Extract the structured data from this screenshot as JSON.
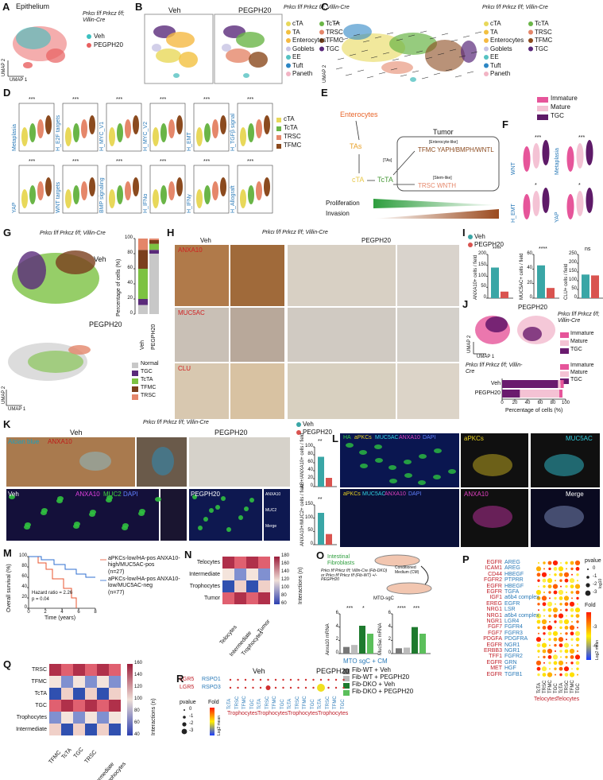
{
  "a": {
    "letter": "A",
    "title": "Epithelium",
    "genotype": "Prkcι f/f Prkcz f/f; Villin-Cre",
    "legend": [
      {
        "name": "Veh",
        "color": "#3cc0c0"
      },
      {
        "name": "PEGPH20",
        "color": "#e86060"
      }
    ],
    "xlabel": "UMAP 1",
    "ylabel": "UMAP 2"
  },
  "b": {
    "letter": "B",
    "groups": [
      "Veh",
      "PEGPH20"
    ],
    "genotype": "Prkcι f/f Prkcz f/f; Villin-Cre",
    "legend": [
      "cTA",
      "TA",
      "Enterocytes",
      "Goblets",
      "EE",
      "Tuft",
      "Paneth",
      "TcTA",
      "TRSC",
      "TFMC",
      "TGC"
    ],
    "colors": [
      "#e8d85a",
      "#f2c040",
      "#f5b942",
      "#c7c3e3",
      "#55c2c2",
      "#2d86c4",
      "#f2b4c4",
      "#6ab547",
      "#e5876a",
      "#8b4a1e",
      "#5a2a7a"
    ]
  },
  "c": {
    "letter": "C",
    "genotype": "Prkcι f/f Prkcz f/f; Villin-Cre",
    "ylabel": "UMAP 2"
  },
  "d": {
    "letter": "D",
    "signatures": [
      "Metaplasia",
      "H_E2F targets",
      "H_MYC_V1",
      "H_MYC_V2",
      "H_EMT",
      "H_TGFβ signal",
      "YAP",
      "WNT targets",
      "BMP signaling",
      "H_IFNα",
      "H_IFNγ",
      "H_Allograft"
    ],
    "sig": "***",
    "legend": [
      {
        "name": "cTA",
        "color": "#e8d85a"
      },
      {
        "name": "TcTA",
        "color": "#6ab547"
      },
      {
        "name": "TRSC",
        "color": "#e5876a"
      },
      {
        "name": "TFMC",
        "color": "#8b4a1e"
      }
    ]
  },
  "e": {
    "letter": "E",
    "nodes": [
      "Enterocytes",
      "TAs",
      "cTA",
      "TcTA"
    ],
    "tumor": "Tumor",
    "tags": [
      "[Enterocyte-like]",
      "[TAs]",
      "[Stem-like]"
    ],
    "tfmc": "TFMC YAPH/BMPH/WNTL",
    "trsc": "TRSC WNTH",
    "gradients": [
      "Proliferation",
      "Invasion"
    ]
  },
  "f": {
    "letter": "F",
    "legend": [
      {
        "name": "Immature",
        "color": "#e6559a"
      },
      {
        "name": "Mature",
        "color": "#f4c2d4"
      },
      {
        "name": "TGC",
        "color": "#5e1a68"
      }
    ],
    "signatures": [
      "WNT",
      "Metaplasia",
      "H_EMT",
      "YAP"
    ],
    "stars": [
      "***",
      "***",
      "*",
      "*"
    ]
  },
  "g": {
    "letter": "G",
    "genotype": "Prkcι f/f Prkcz f/f; Villin-Cre",
    "groups": [
      "Veh",
      "PEGPH20"
    ],
    "ylabel": "Percentage of cells (%)",
    "yticks": [
      0,
      20,
      40,
      60,
      80,
      100
    ],
    "series": [
      {
        "name": "Normal",
        "color": "#c8c8c8",
        "values": [
          12,
          80
        ]
      },
      {
        "name": "TGC",
        "color": "#5a2a7a",
        "values": [
          8,
          5
        ]
      },
      {
        "name": "TcTA",
        "color": "#7cc242",
        "values": [
          40,
          8
        ]
      },
      {
        "name": "TFMC",
        "color": "#7b3f1d",
        "values": [
          25,
          5
        ]
      },
      {
        "name": "TRSC",
        "color": "#e4866a",
        "values": [
          15,
          2
        ]
      }
    ],
    "xlabel": "UMAP 1",
    "umap_ylabel": "UMAP 2"
  },
  "h": {
    "letter": "H",
    "genotype": "Prkcι f/f Prkcz f/f; Villin-Cre",
    "groups": [
      "Veh",
      "PEGPH20"
    ],
    "stains": [
      "ANXA10",
      "MUC5AC",
      "CLU"
    ]
  },
  "i": {
    "letter": "I",
    "legend": [
      {
        "name": "Veh",
        "color": "#3aa6a6"
      },
      {
        "name": "PEGPH20",
        "color": "#d9534f"
      }
    ],
    "plots": [
      {
        "ylabel": "ANXA10+ cells / field",
        "yticks": [
          0,
          50,
          100,
          150,
          200
        ],
        "means": [
          140,
          30
        ],
        "sig": "****"
      },
      {
        "ylabel": "MUC5AC+ cells / field",
        "yticks": [
          0,
          20,
          40,
          60
        ],
        "means": [
          45,
          14
        ],
        "sig": "****"
      },
      {
        "ylabel": "CLU+ cells / field",
        "yticks": [
          0,
          50,
          100,
          150,
          200,
          250
        ],
        "means": [
          135,
          130
        ],
        "sig": "ns"
      }
    ]
  },
  "j": {
    "letter": "J",
    "groups": [
      "Veh",
      "PEGPH20"
    ],
    "genotype": "Prkcι f/f Prkcz f/f; Villin-Cre",
    "xlabel": "UMAP 1",
    "ylabel": "UMAP 2",
    "xticks": [
      0,
      20,
      40,
      60,
      80,
      100
    ],
    "xaxis": "Percentage of cells (%)",
    "series": [
      {
        "name": "TGC",
        "color": "#6a1b6e",
        "values": [
          88,
          28
        ]
      },
      {
        "name": "Mature",
        "color": "#f4c2d4",
        "values": [
          4,
          62
        ]
      },
      {
        "name": "Immature",
        "color": "#e6559a",
        "values": [
          5,
          5
        ]
      }
    ]
  },
  "k": {
    "letter": "K",
    "genotype": "Prkcι f/f Prkcz f/f; Villin-Cre",
    "groups": [
      "Veh",
      "PEGPH20"
    ],
    "stains_top": [
      "Alcian blue",
      "ANXA10"
    ],
    "stains_bottom": [
      "ANXA10",
      "MUC2",
      "DAPI"
    ],
    "insets": [
      "ANXA10",
      "MUC2",
      "Merge"
    ],
    "legend": [
      {
        "name": "Veh",
        "color": "#3aa6a6"
      },
      {
        "name": "PEGPH20",
        "color": "#d9534f"
      }
    ],
    "plots": [
      {
        "ylabel": "AB+/ANXA10+ cells / field",
        "yticks": [
          0,
          20,
          40,
          60,
          80,
          100
        ],
        "means": [
          75,
          22
        ],
        "sig": "**"
      },
      {
        "ylabel": "ANXA10+/MUC2+ cells / field",
        "yticks": [
          0,
          50,
          100,
          150
        ],
        "means": [
          120,
          40
        ],
        "sig": "**"
      }
    ]
  },
  "l": {
    "letter": "L",
    "top": [
      "HA",
      "aPKCs",
      "MUC5AC",
      "ANXA10",
      "DAPI"
    ],
    "panels": [
      "aPKCs",
      "MUC5AC",
      "ANXA10",
      "Merge"
    ],
    "bottom": [
      "aPKCs",
      "MUC5AC",
      "ANXA10",
      "DAPI"
    ]
  },
  "m": {
    "letter": "M",
    "ylabel": "Overall survival (%)",
    "xlabel": "Time (years)",
    "yticks": [
      0,
      20,
      40,
      60,
      80,
      100
    ],
    "xticks": [
      0,
      2,
      4,
      6,
      8
    ],
    "series": [
      {
        "name": "aPKCs-low/HA-pos ANXA10-high/MUC5AC-pos",
        "n": "(n=27)",
        "color": "#e8542f"
      },
      {
        "name": "aPKCs-low/HA-pos ANXA10-low/MUC5AC-neg",
        "n": "(n=77)",
        "color": "#2f6fd1"
      }
    ],
    "hr": "Hazard ratio = 2.26",
    "p": "p = 0.04"
  },
  "n": {
    "letter": "N",
    "rows": [
      "Telocytes",
      "Intermediate",
      "Trophocytes",
      "Tumor"
    ],
    "scale_label": "Interactions (n)",
    "scale_ticks": [
      180,
      160,
      140,
      120,
      100,
      80,
      60
    ]
  },
  "o": {
    "letter": "O",
    "fibro": "Intestinal Fibroblasts",
    "source": "Prkcι f/f Prkcz f/f; Villin-Cre (Fib-DKO) or Prkcι f/f Prkcz f/f (Fib-WT) +/- PEGPH20",
    "cm": "Conditioned Medium (CM)",
    "cells": "MTO-sgC",
    "plots": [
      {
        "ylabel": "Anxa10 mRNA",
        "yticks": [
          0,
          2,
          4,
          6
        ],
        "means": [
          1,
          1.3,
          4.2,
          3
        ],
        "sig": [
          "***",
          "*"
        ]
      },
      {
        "ylabel": "Muc5ac mRNA",
        "yticks": [
          0,
          2,
          4,
          6
        ],
        "means": [
          0.8,
          0.9,
          4,
          3
        ],
        "sig": [
          "****",
          "***"
        ]
      }
    ],
    "xlabel": "MTO sgC + CM",
    "legend": [
      {
        "name": "Fib-WT + Veh",
        "color": "#777777"
      },
      {
        "name": "Fib-WT + PEGPH20",
        "color": "#bbbbbb"
      },
      {
        "name": "Fib-DKO + Veh",
        "color": "#1e7a2e"
      },
      {
        "name": "Fib-DKO + PEGPH20",
        "color": "#5bbf5b"
      }
    ]
  },
  "p": {
    "letter": "P",
    "pairs": [
      [
        "EGFR",
        "AREG"
      ],
      [
        "ICAM1",
        "AREG"
      ],
      [
        "CD44",
        "HBEGF"
      ],
      [
        "FGFR2",
        "PTPRR"
      ],
      [
        "EGFR",
        "HBEGF"
      ],
      [
        "EGFR",
        "TGFA"
      ],
      [
        "IGF1",
        "a6b4 complex"
      ],
      [
        "EREG",
        "EGFR"
      ],
      [
        "NRG1",
        "LSR"
      ],
      [
        "NRG1",
        "a6b4 complex"
      ],
      [
        "NGR1",
        "LGR4"
      ],
      [
        "FGF7",
        "FGFR4"
      ],
      [
        "FGF7",
        "FGFR3"
      ],
      [
        "PDGFA",
        "PDGFRA"
      ],
      [
        "EGFR",
        "NGR1"
      ],
      [
        "ERBB3",
        "NGR1"
      ],
      [
        "TFF1",
        "FGFR2"
      ],
      [
        "EGFR",
        "GRN"
      ],
      [
        "MET",
        "HGF"
      ],
      [
        "EGFR",
        "TGFB1"
      ]
    ],
    "cols": [
      "TcTA",
      "TRSC",
      "TFMC",
      "TGC"
    ],
    "groups": [
      "Telocytes",
      "Telocytes"
    ],
    "pvalue": "pvalue",
    "pticks": [
      0,
      -1,
      -2,
      -3
    ],
    "log": "log10",
    "fold": "Fold",
    "foldticks": [
      -3,
      -6
    ],
    "color_label": "Log2 mean"
  },
  "q": {
    "letter": "Q",
    "rows": [
      "TRSC",
      "TFMC",
      "TcTA",
      "TGC",
      "Trophocytes",
      "Intermediate"
    ],
    "cols": [
      "TFMC",
      "TcTA",
      "TGC",
      "TRSC",
      "Intermediate",
      "Trophocytes"
    ],
    "scale_label": "Interactions (n)",
    "scale_ticks": [
      160,
      140,
      120,
      100,
      80,
      60,
      40
    ]
  },
  "r": {
    "letter": "R",
    "pairs": [
      [
        "LGR5",
        "RSPO1"
      ],
      [
        "LGR5",
        "RSPO3"
      ]
    ],
    "groups": [
      "Veh",
      "PEGPH20"
    ],
    "cols": [
      "TcTA",
      "TRSC",
      "TFMC",
      "TGC"
    ],
    "cell": "Trophocytes",
    "pvalue": "pvalue",
    "pticks": [
      0,
      -1,
      -2,
      -3
    ],
    "fold": "Fold",
    "color_label": "Log2 mean"
  }
}
